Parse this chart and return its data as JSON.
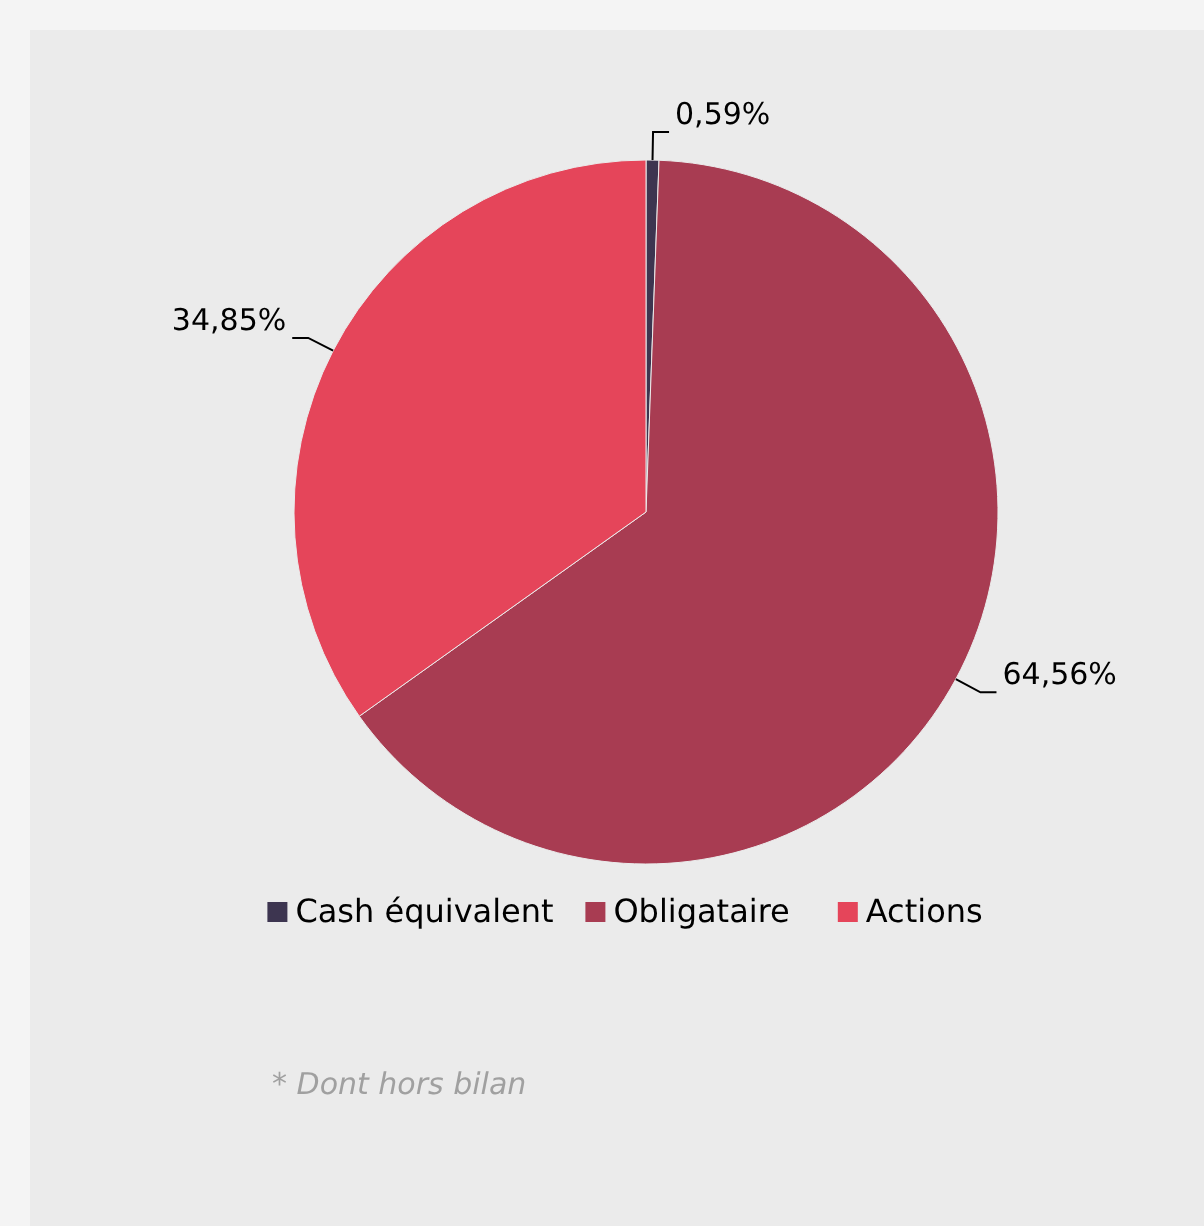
{
  "chart_data": {
    "type": "pie",
    "categories": [
      "Cash équivalent",
      "Obligataire",
      "Actions"
    ],
    "values": [
      0.59,
      64.56,
      34.85
    ],
    "colors": [
      "#3d3550",
      "#a83c52",
      "#e5455a"
    ],
    "value_labels": [
      "0,59%",
      "64,56%",
      "34,85%"
    ],
    "legend": "bottom",
    "annotations": [
      "* Dont hors bilan"
    ]
  }
}
